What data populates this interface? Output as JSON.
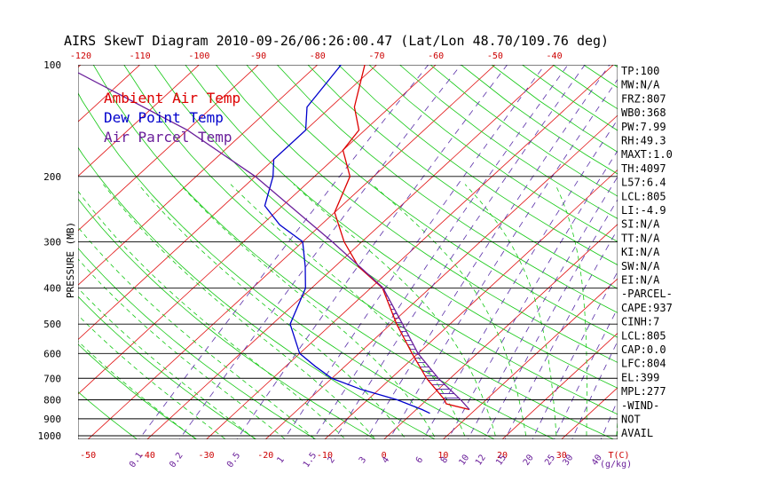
{
  "chart_data": {
    "type": "line",
    "title": "AIRS SkewT Diagram 2010-09-26/06:26:00.47 (Lat/Lon 48.70/109.76 deg)",
    "ylabel": "PRESSURE (MB)",
    "y_scale": "log",
    "ylim": [
      1000,
      100
    ],
    "pressure_ticks": [
      100,
      200,
      300,
      400,
      500,
      600,
      700,
      800,
      900,
      1000
    ],
    "top_temp_ticks": [
      -120,
      -110,
      -100,
      -90,
      -80,
      -70,
      -60,
      -50,
      -40
    ],
    "bottom_temp_ticks": [
      -50,
      -40,
      -30,
      -20,
      -10,
      0,
      10,
      20,
      30
    ],
    "bottom_temp_label": "T(C)",
    "mixing_ratio_ticks": [
      "0.1",
      "0.2",
      "0.5",
      "1",
      "1.5",
      "2",
      "3",
      "4",
      "6",
      "8",
      "10",
      "12",
      "15",
      "20",
      "25",
      "30",
      "40"
    ],
    "mixing_ratio_label": "(g/kg)",
    "legend": [
      {
        "name": "Ambient Air Temp",
        "color": "#dd0000"
      },
      {
        "name": "Dew Point Temp",
        "color": "#0000cc"
      },
      {
        "name": "Air Parcel Temp",
        "color": "#6a1f9a"
      }
    ],
    "series": [
      {
        "name": "Ambient Air Temp",
        "color": "#dd0000",
        "points": [
          [
            850,
            9
          ],
          [
            820,
            4
          ],
          [
            800,
            3
          ],
          [
            700,
            -4
          ],
          [
            600,
            -11
          ],
          [
            500,
            -19
          ],
          [
            400,
            -28
          ],
          [
            350,
            -36
          ],
          [
            300,
            -43
          ],
          [
            250,
            -50
          ],
          [
            200,
            -54
          ],
          [
            170,
            -60
          ],
          [
            150,
            -61
          ],
          [
            130,
            -66
          ],
          [
            100,
            -72
          ]
        ]
      },
      {
        "name": "Dew Point Temp",
        "color": "#0000cc",
        "points": [
          [
            870,
            3
          ],
          [
            850,
            1
          ],
          [
            800,
            -5
          ],
          [
            750,
            -13
          ],
          [
            700,
            -20
          ],
          [
            650,
            -25
          ],
          [
            600,
            -30
          ],
          [
            500,
            -37
          ],
          [
            400,
            -41
          ],
          [
            350,
            -45
          ],
          [
            300,
            -50
          ],
          [
            270,
            -57
          ],
          [
            240,
            -63
          ],
          [
            200,
            -67
          ],
          [
            180,
            -70
          ],
          [
            150,
            -70
          ],
          [
            130,
            -74
          ],
          [
            100,
            -76
          ]
        ]
      },
      {
        "name": "Air Parcel Temp",
        "color": "#6a1f9a",
        "points": [
          [
            850,
            9
          ],
          [
            804,
            6
          ],
          [
            700,
            -2
          ],
          [
            600,
            -10
          ],
          [
            500,
            -18
          ],
          [
            399,
            -28
          ],
          [
            300,
            -45
          ],
          [
            200,
            -70
          ],
          [
            150,
            -90
          ],
          [
            100,
            -123
          ]
        ]
      }
    ]
  },
  "indices": [
    "TP:100",
    "MW:N/A",
    "FRZ:807",
    "WB0:368",
    "PW:7.99",
    "RH:49.3",
    "MAXT:1.0",
    "TH:4097",
    "L57:6.4",
    "LCL:805",
    "LI:-4.9",
    "SI:N/A",
    "TT:N/A",
    "KI:N/A",
    "SW:N/A",
    "EI:N/A",
    "-PARCEL-",
    "CAPE:937",
    "CINH:7",
    "LCL:805",
    "CAP:0.0",
    "LFC:804",
    "EL:399",
    "MPL:277",
    "-WIND-",
    "NOT",
    "AVAIL"
  ],
  "colors": {
    "isotherm": "#e01010",
    "dry_adiabat": "#14c814",
    "moist_adiabat": "#14c814",
    "mixing_ratio": "#5a2fa8",
    "isobar": "#000000",
    "cape_hatch": "#5a2fa8"
  }
}
